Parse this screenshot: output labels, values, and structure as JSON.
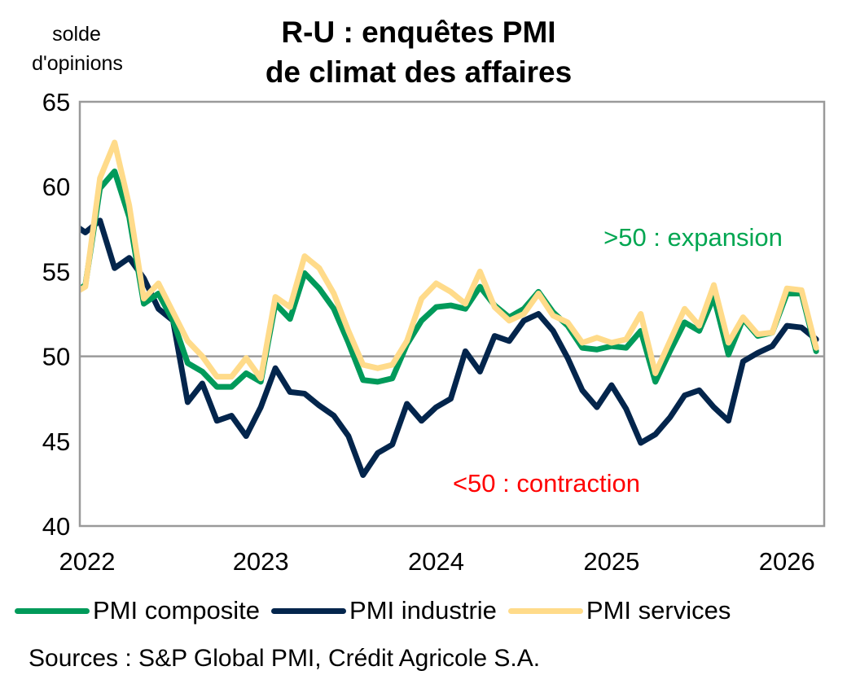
{
  "chart_data": {
    "type": "line",
    "title": [
      "R-U : enquêtes PMI",
      "de climat des affaires"
    ],
    "ylabel": [
      "solde",
      "d'opinions"
    ],
    "xlabel": "",
    "ylim": [
      40,
      65
    ],
    "yticks": [
      "40",
      "45",
      "50",
      "55",
      "60",
      "65"
    ],
    "ytick_values": [
      40,
      45,
      50,
      55,
      60,
      65
    ],
    "xticks": [
      "2022",
      "2023",
      "2024",
      "2025",
      "2026"
    ],
    "xtick_month_index": [
      0,
      12,
      24,
      36,
      48
    ],
    "x_start": "2021-12",
    "x_end": "2026-03",
    "reference_line": 50,
    "grid": false,
    "legend_position": "bottom",
    "annotations": [
      {
        "text": ">50 : expansion",
        "color": "#00A651"
      },
      {
        "text": "<50 : contraction",
        "color": "#FF0000"
      }
    ],
    "series": [
      {
        "name": "PMI composite",
        "color": "#009A5A",
        "values": [
          53.6,
          54.2,
          59.9,
          60.9,
          58.2,
          53.1,
          53.7,
          52.1,
          49.6,
          49.1,
          48.2,
          48.2,
          49.0,
          48.5,
          53.1,
          52.2,
          54.9,
          54.0,
          52.8,
          50.8,
          48.6,
          48.5,
          48.7,
          50.7,
          52.1,
          52.9,
          53.0,
          52.8,
          54.1,
          53.0,
          52.3,
          52.8,
          53.8,
          52.6,
          51.8,
          50.5,
          50.4,
          50.6,
          50.5,
          51.5,
          48.5,
          50.3,
          52.0,
          51.5,
          53.5,
          50.1,
          52.2,
          51.2,
          51.4,
          53.7,
          53.7,
          50.3
        ]
      },
      {
        "name": "PMI industrie",
        "color": "#03254C",
        "values": [
          57.9,
          57.3,
          58.0,
          55.2,
          55.8,
          54.6,
          52.8,
          52.1,
          47.3,
          48.4,
          46.2,
          46.5,
          45.3,
          47.0,
          49.3,
          47.9,
          47.8,
          47.1,
          46.5,
          45.3,
          43.0,
          44.3,
          44.8,
          47.2,
          46.2,
          47.0,
          47.5,
          50.3,
          49.1,
          51.2,
          50.9,
          52.1,
          52.5,
          51.5,
          49.9,
          48.0,
          47.0,
          48.3,
          46.9,
          44.9,
          45.4,
          46.4,
          47.7,
          48.0,
          47.0,
          46.2,
          49.7,
          50.2,
          50.6,
          51.8,
          51.7,
          51.0
        ]
      },
      {
        "name": "PMI services",
        "color": "#FFDB8A",
        "values": [
          53.6,
          54.1,
          60.5,
          62.6,
          58.9,
          53.4,
          54.3,
          52.6,
          50.9,
          50.0,
          48.8,
          48.8,
          49.9,
          48.7,
          53.5,
          52.9,
          55.9,
          55.2,
          53.7,
          51.5,
          49.5,
          49.3,
          49.5,
          50.9,
          53.4,
          54.3,
          53.8,
          53.1,
          55.0,
          52.9,
          52.1,
          52.5,
          53.7,
          52.4,
          52.0,
          50.8,
          51.1,
          50.8,
          51.0,
          52.5,
          49.0,
          50.9,
          52.8,
          51.8,
          54.2,
          50.8,
          52.3,
          51.3,
          51.4,
          54.0,
          53.9,
          50.5
        ]
      }
    ]
  },
  "source": "Sources : S&P Global PMI, Crédit Agricole S.A."
}
